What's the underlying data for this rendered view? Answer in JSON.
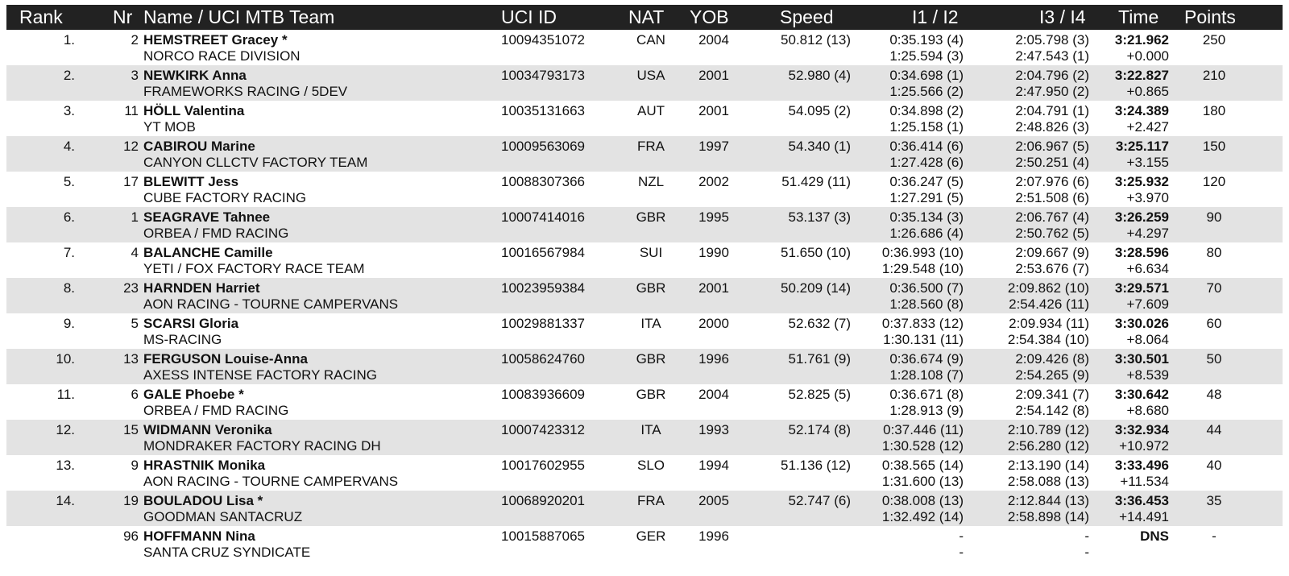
{
  "headers": {
    "rank": "Rank",
    "nr": "Nr",
    "name": "Name / UCI MTB Team",
    "uci_id": "UCI ID",
    "nat": "NAT",
    "yob": "YOB",
    "speed": "Speed",
    "i12": "I1 / I2",
    "i34": "I3 / I4",
    "time": "Time",
    "points": "Points"
  },
  "rows": [
    {
      "rank": "1.",
      "nr": "2",
      "name": "HEMSTREET Gracey *",
      "team": "NORCO RACE DIVISION",
      "uci": "10094351072",
      "nat": "CAN",
      "yob": "2004",
      "speed": "50.812 (13)",
      "i1": "0:35.193 (4)",
      "i2": "1:25.594 (3)",
      "i3": "2:05.798 (3)",
      "i4": "2:47.543 (1)",
      "time": "3:21.962",
      "gap": "+0.000",
      "points": "250"
    },
    {
      "rank": "2.",
      "nr": "3",
      "name": "NEWKIRK Anna",
      "team": "FRAMEWORKS RACING / 5DEV",
      "uci": "10034793173",
      "nat": "USA",
      "yob": "2001",
      "speed": "52.980 (4)",
      "i1": "0:34.698 (1)",
      "i2": "1:25.566 (2)",
      "i3": "2:04.796 (2)",
      "i4": "2:47.950 (2)",
      "time": "3:22.827",
      "gap": "+0.865",
      "points": "210"
    },
    {
      "rank": "3.",
      "nr": "11",
      "name": "HÖLL Valentina",
      "team": "YT MOB",
      "uci": "10035131663",
      "nat": "AUT",
      "yob": "2001",
      "speed": "54.095 (2)",
      "i1": "0:34.898 (2)",
      "i2": "1:25.158 (1)",
      "i3": "2:04.791 (1)",
      "i4": "2:48.826 (3)",
      "time": "3:24.389",
      "gap": "+2.427",
      "points": "180"
    },
    {
      "rank": "4.",
      "nr": "12",
      "name": "CABIROU Marine",
      "team": "CANYON CLLCTV FACTORY TEAM",
      "uci": "10009563069",
      "nat": "FRA",
      "yob": "1997",
      "speed": "54.340 (1)",
      "i1": "0:36.414 (6)",
      "i2": "1:27.428 (6)",
      "i3": "2:06.967 (5)",
      "i4": "2:50.251 (4)",
      "time": "3:25.117",
      "gap": "+3.155",
      "points": "150"
    },
    {
      "rank": "5.",
      "nr": "17",
      "name": "BLEWITT Jess",
      "team": "CUBE FACTORY RACING",
      "uci": "10088307366",
      "nat": "NZL",
      "yob": "2002",
      "speed": "51.429 (11)",
      "i1": "0:36.247 (5)",
      "i2": "1:27.291 (5)",
      "i3": "2:07.976 (6)",
      "i4": "2:51.508 (6)",
      "time": "3:25.932",
      "gap": "+3.970",
      "points": "120"
    },
    {
      "rank": "6.",
      "nr": "1",
      "name": "SEAGRAVE Tahnee",
      "team": "ORBEA / FMD RACING",
      "uci": "10007414016",
      "nat": "GBR",
      "yob": "1995",
      "speed": "53.137 (3)",
      "i1": "0:35.134 (3)",
      "i2": "1:26.686 (4)",
      "i3": "2:06.767 (4)",
      "i4": "2:50.762 (5)",
      "time": "3:26.259",
      "gap": "+4.297",
      "points": "90"
    },
    {
      "rank": "7.",
      "nr": "4",
      "name": "BALANCHE Camille",
      "team": "YETI / FOX FACTORY RACE TEAM",
      "uci": "10016567984",
      "nat": "SUI",
      "yob": "1990",
      "speed": "51.650 (10)",
      "i1": "0:36.993 (10)",
      "i2": "1:29.548 (10)",
      "i3": "2:09.667 (9)",
      "i4": "2:53.676 (7)",
      "time": "3:28.596",
      "gap": "+6.634",
      "points": "80"
    },
    {
      "rank": "8.",
      "nr": "23",
      "name": "HARNDEN Harriet",
      "team": "AON RACING - TOURNE CAMPERVANS",
      "uci": "10023959384",
      "nat": "GBR",
      "yob": "2001",
      "speed": "50.209 (14)",
      "i1": "0:36.500 (7)",
      "i2": "1:28.560 (8)",
      "i3": "2:09.862 (10)",
      "i4": "2:54.426 (11)",
      "time": "3:29.571",
      "gap": "+7.609",
      "points": "70"
    },
    {
      "rank": "9.",
      "nr": "5",
      "name": "SCARSI Gloria",
      "team": "MS-RACING",
      "uci": "10029881337",
      "nat": "ITA",
      "yob": "2000",
      "speed": "52.632 (7)",
      "i1": "0:37.833 (12)",
      "i2": "1:30.131 (11)",
      "i3": "2:09.934 (11)",
      "i4": "2:54.384 (10)",
      "time": "3:30.026",
      "gap": "+8.064",
      "points": "60"
    },
    {
      "rank": "10.",
      "nr": "13",
      "name": "FERGUSON Louise-Anna",
      "team": "AXESS INTENSE FACTORY RACING",
      "uci": "10058624760",
      "nat": "GBR",
      "yob": "1996",
      "speed": "51.761 (9)",
      "i1": "0:36.674 (9)",
      "i2": "1:28.108 (7)",
      "i3": "2:09.426 (8)",
      "i4": "2:54.265 (9)",
      "time": "3:30.501",
      "gap": "+8.539",
      "points": "50"
    },
    {
      "rank": "11.",
      "nr": "6",
      "name": "GALE Phoebe *",
      "team": "ORBEA / FMD RACING",
      "uci": "10083936609",
      "nat": "GBR",
      "yob": "2004",
      "speed": "52.825 (5)",
      "i1": "0:36.671 (8)",
      "i2": "1:28.913 (9)",
      "i3": "2:09.341 (7)",
      "i4": "2:54.142 (8)",
      "time": "3:30.642",
      "gap": "+8.680",
      "points": "48"
    },
    {
      "rank": "12.",
      "nr": "15",
      "name": "WIDMANN Veronika",
      "team": "MONDRAKER FACTORY RACING DH",
      "uci": "10007423312",
      "nat": "ITA",
      "yob": "1993",
      "speed": "52.174 (8)",
      "i1": "0:37.446 (11)",
      "i2": "1:30.528 (12)",
      "i3": "2:10.789 (12)",
      "i4": "2:56.280 (12)",
      "time": "3:32.934",
      "gap": "+10.972",
      "points": "44"
    },
    {
      "rank": "13.",
      "nr": "9",
      "name": "HRASTNIK Monika",
      "team": "AON RACING - TOURNE CAMPERVANS",
      "uci": "10017602955",
      "nat": "SLO",
      "yob": "1994",
      "speed": "51.136 (12)",
      "i1": "0:38.565 (14)",
      "i2": "1:31.600 (13)",
      "i3": "2:13.190 (14)",
      "i4": "2:58.088 (13)",
      "time": "3:33.496",
      "gap": "+11.534",
      "points": "40"
    },
    {
      "rank": "14.",
      "nr": "19",
      "name": "BOULADOU Lisa *",
      "team": "GOODMAN SANTACRUZ",
      "uci": "10068920201",
      "nat": "FRA",
      "yob": "2005",
      "speed": "52.747 (6)",
      "i1": "0:38.008 (13)",
      "i2": "1:32.492 (14)",
      "i3": "2:12.844 (13)",
      "i4": "2:58.898 (14)",
      "time": "3:36.453",
      "gap": "+14.491",
      "points": "35"
    },
    {
      "rank": "",
      "nr": "96",
      "name": "HOFFMANN Nina",
      "team": "SANTA CRUZ SYNDICATE",
      "uci": "10015887065",
      "nat": "GER",
      "yob": "1996",
      "speed": "",
      "i1": "-",
      "i2": "-",
      "i3": "-",
      "i4": "-",
      "time": "DNS",
      "gap": "",
      "points": "-"
    }
  ]
}
